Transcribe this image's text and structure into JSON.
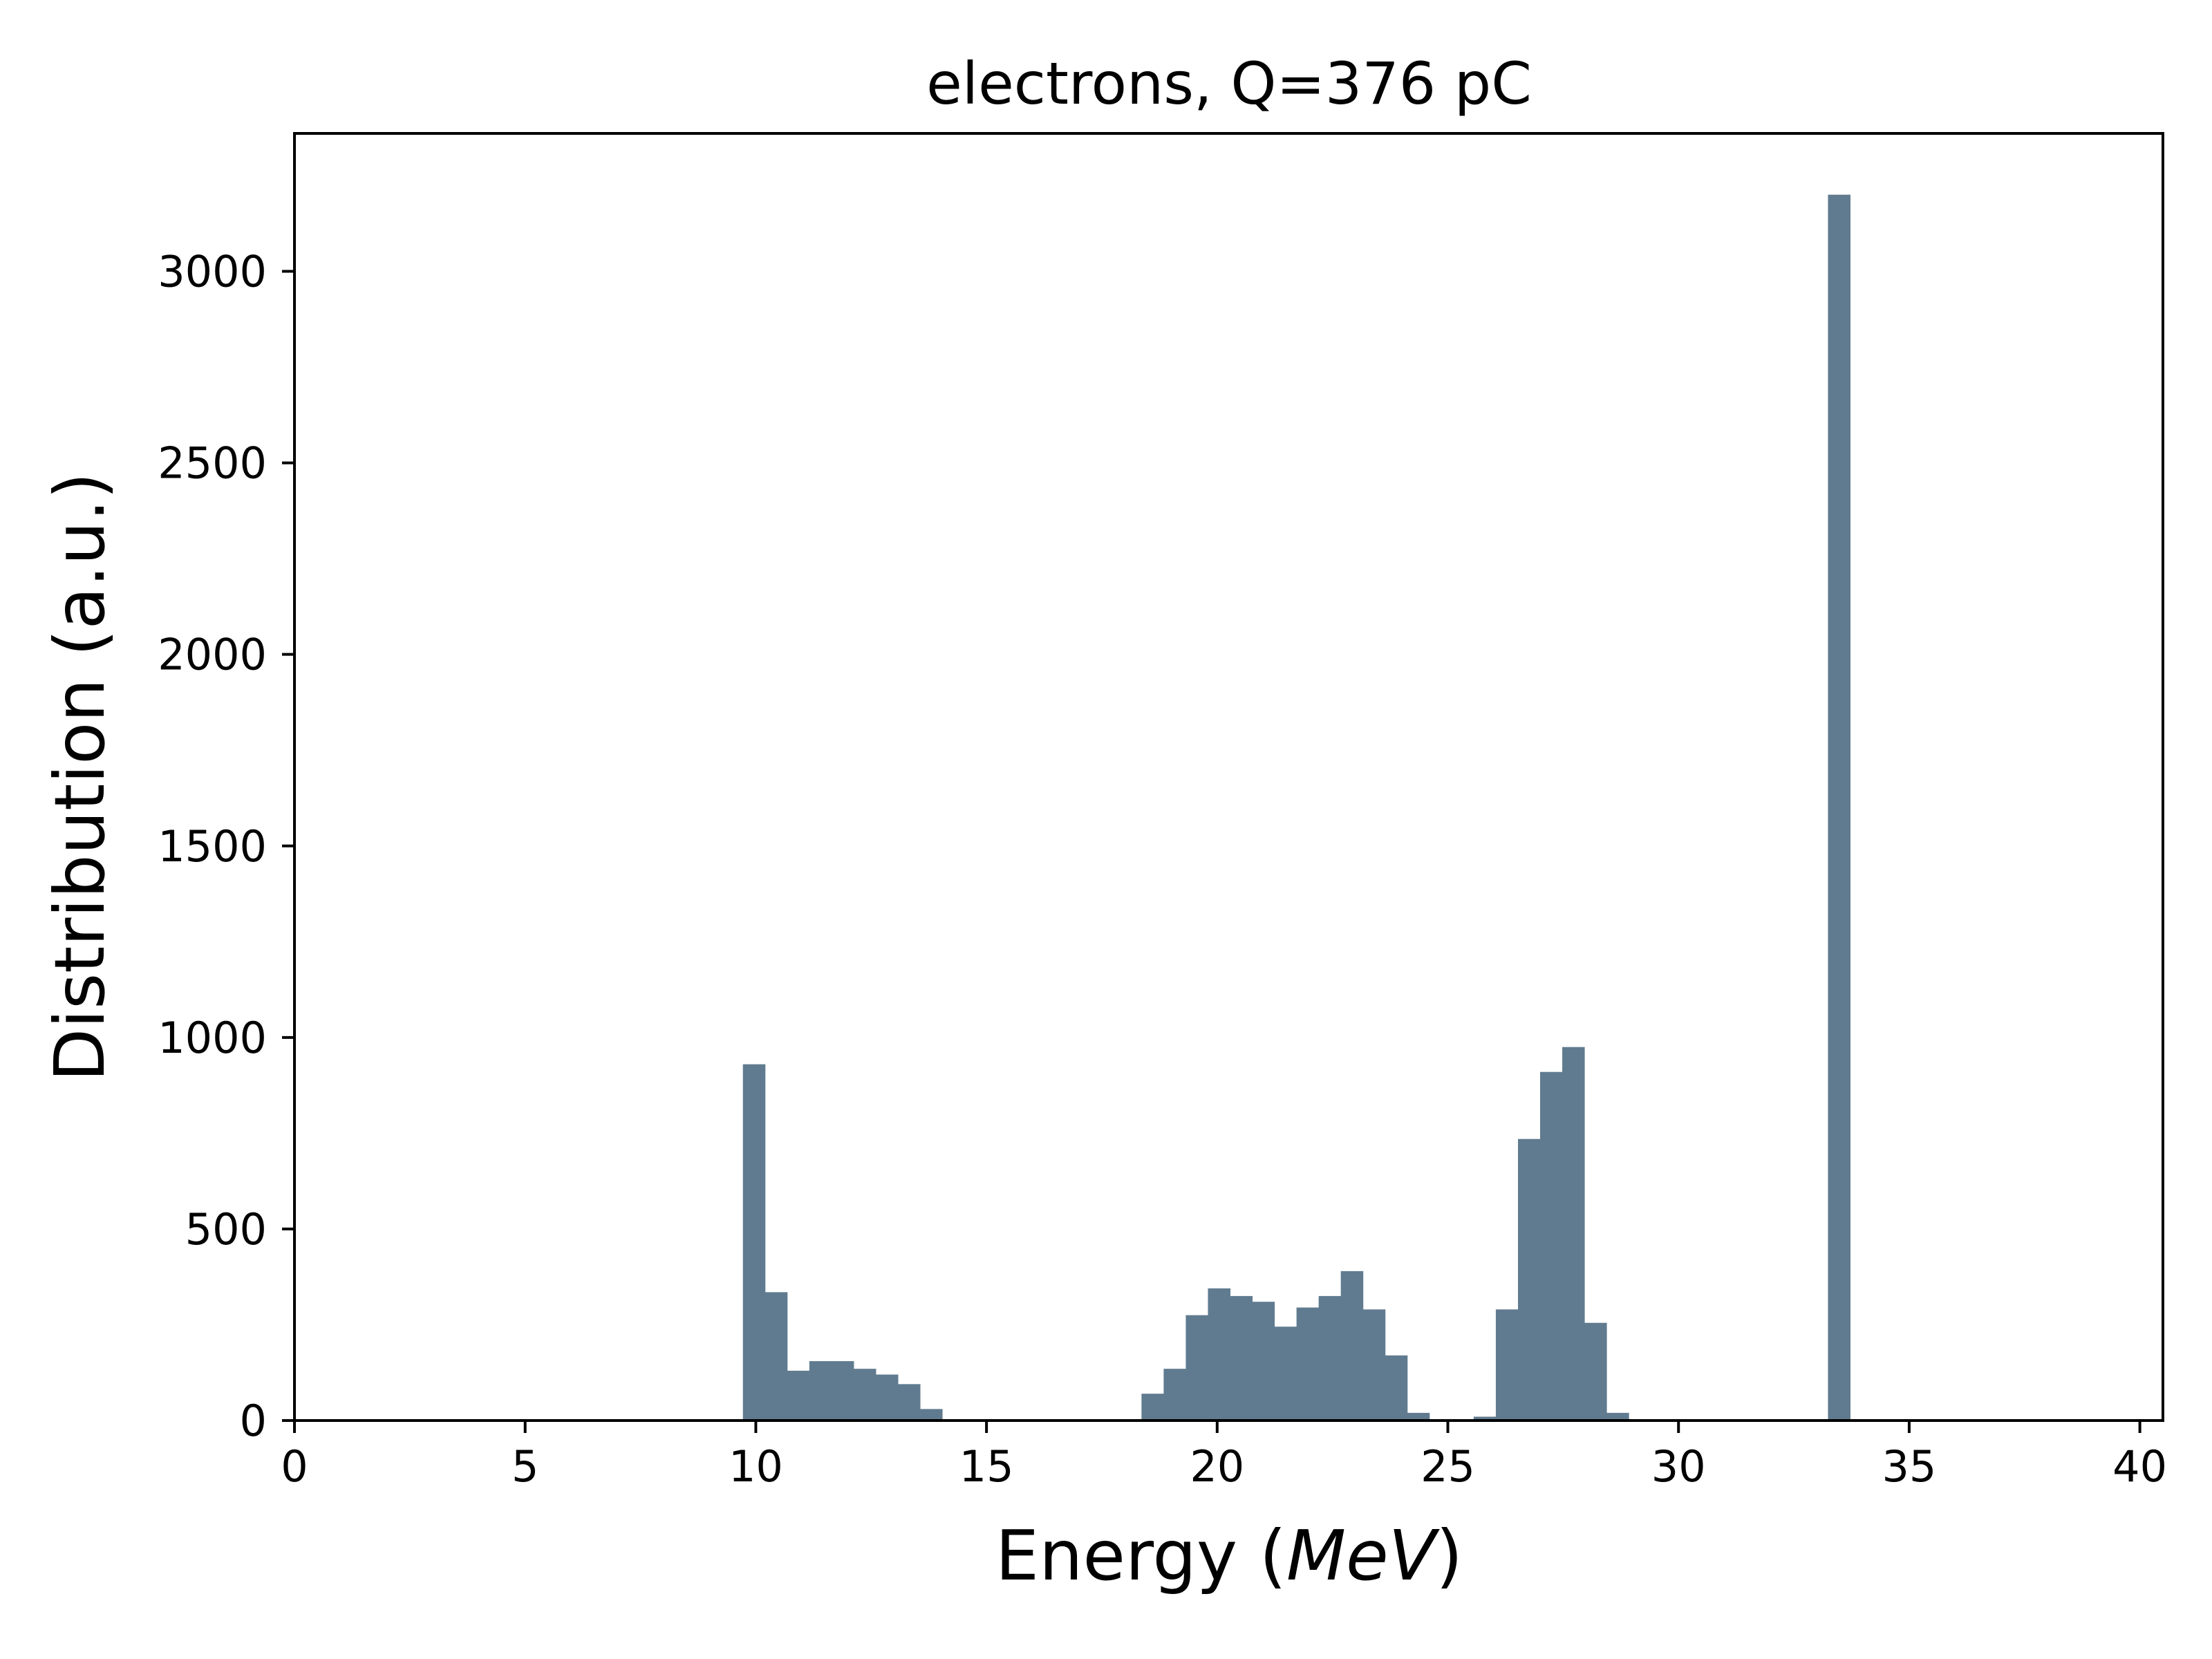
{
  "chart_data": {
    "type": "bar",
    "title": "electrons, Q=376 pC",
    "xlabel": "Energy",
    "xlabel_unit": "MeV",
    "ylabel": "Distribution (a.u.)",
    "xlim": [
      0,
      40.5
    ],
    "ylim": [
      0,
      3360
    ],
    "xticks": [
      0,
      5,
      10,
      15,
      20,
      25,
      30,
      35,
      40
    ],
    "yticks": [
      0,
      500,
      1000,
      1500,
      2000,
      2500,
      3000
    ],
    "grid": false,
    "bar_color": "#607b8f",
    "bin_width": 0.48,
    "bins": [
      {
        "x": 9.72,
        "value": 930
      },
      {
        "x": 10.2,
        "value": 335
      },
      {
        "x": 10.68,
        "value": 130
      },
      {
        "x": 11.16,
        "value": 155
      },
      {
        "x": 11.64,
        "value": 155
      },
      {
        "x": 12.12,
        "value": 135
      },
      {
        "x": 12.6,
        "value": 120
      },
      {
        "x": 13.08,
        "value": 95
      },
      {
        "x": 13.56,
        "value": 30
      },
      {
        "x": 18.36,
        "value": 70
      },
      {
        "x": 18.84,
        "value": 135
      },
      {
        "x": 19.32,
        "value": 275
      },
      {
        "x": 19.8,
        "value": 345
      },
      {
        "x": 20.28,
        "value": 325
      },
      {
        "x": 20.76,
        "value": 310
      },
      {
        "x": 21.24,
        "value": 245
      },
      {
        "x": 21.72,
        "value": 295
      },
      {
        "x": 22.2,
        "value": 325
      },
      {
        "x": 22.68,
        "value": 390
      },
      {
        "x": 23.16,
        "value": 290
      },
      {
        "x": 23.64,
        "value": 170
      },
      {
        "x": 24.12,
        "value": 20
      },
      {
        "x": 25.56,
        "value": 10
      },
      {
        "x": 26.04,
        "value": 290
      },
      {
        "x": 26.52,
        "value": 735
      },
      {
        "x": 27.0,
        "value": 910
      },
      {
        "x": 27.48,
        "value": 975
      },
      {
        "x": 27.96,
        "value": 255
      },
      {
        "x": 28.44,
        "value": 20
      },
      {
        "x": 33.24,
        "value": 3200
      }
    ]
  }
}
